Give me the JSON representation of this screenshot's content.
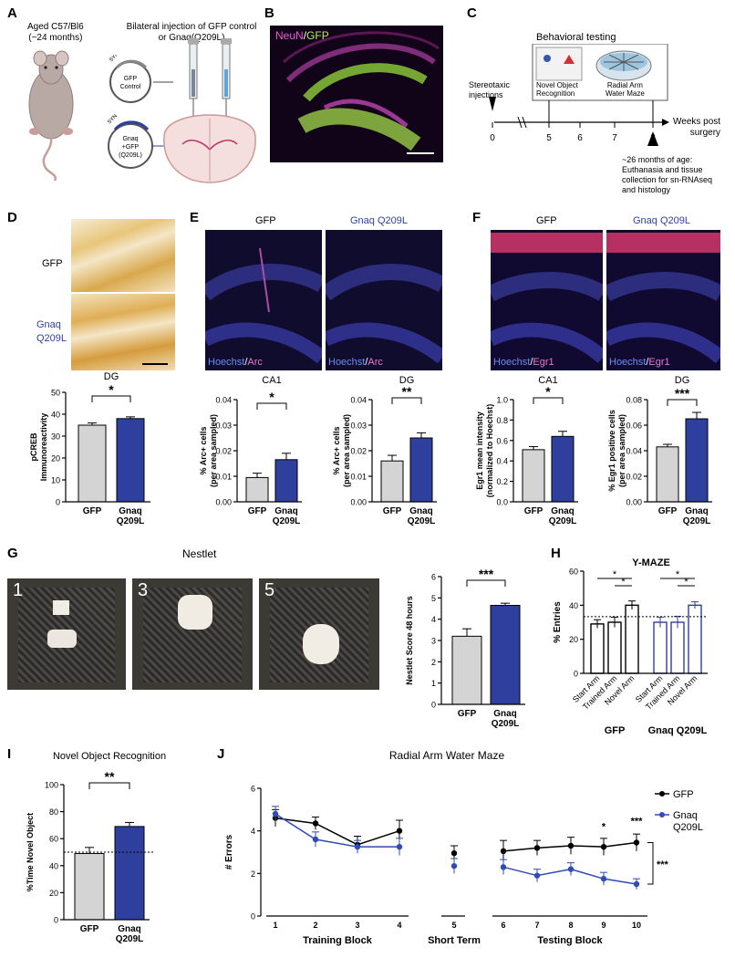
{
  "panelA": {
    "letter": "A",
    "mouse_label_1": "Aged C57/Bl6",
    "mouse_label_2": "(~24 months)",
    "injection_line_1": "Bilateral injection of GFP control",
    "injection_line_2": "or Gnaq(Q209L)",
    "vector1_syn": "SYN",
    "vector1_line1": "GFP",
    "vector1_line2": "Control",
    "vector2_syn": "SYN",
    "vector2_line1": "Gnaq",
    "vector2_line2": "+GFP",
    "vector2_line3": "(Q209L)"
  },
  "panelB": {
    "letter": "B",
    "label_neun": "NeuN",
    "label_sep": "/",
    "label_gfp": "GFP"
  },
  "panelC": {
    "letter": "C",
    "behavioral_testing": "Behavioral testing",
    "stereotaxic_1": "Stereotaxic",
    "stereotaxic_2": "injections",
    "nor_1": "Novel Object",
    "nor_2": "Recognition",
    "ram_1": "Radial Arm",
    "ram_2": "Water Maze",
    "ticks": [
      "0",
      "5",
      "6",
      "7",
      "8"
    ],
    "weeks_1": "Weeks post",
    "weeks_2": "surgery",
    "note_1": "~26 months of age:",
    "note_2": "Euthanasia and tissue",
    "note_3": "collection for sn-RNAseq",
    "note_4": "and histology"
  },
  "panelD": {
    "letter": "D",
    "gfp": "GFP",
    "gnaq_1": "Gnaq",
    "gnaq_2": "Q209L",
    "title": "DG",
    "sig": "*",
    "ylabel_1": "pCREB",
    "ylabel_2": "Immunoreactivity"
  },
  "panelE": {
    "letter": "E",
    "gfp": "GFP",
    "gnaq": "Gnaq Q209L",
    "stain_a": "Hoechst",
    "stain_b": "Arc",
    "ca1": "CA1",
    "dg": "DG",
    "ylabel_1": "% Arc+ cells",
    "ylabel_2": "(per area sampled)"
  },
  "panelF": {
    "letter": "F",
    "gfp": "GFP",
    "gnaq": "Gnaq Q209L",
    "stain_a": "Hoechst",
    "stain_b": "Egr1",
    "ca1": "CA1",
    "dg": "DG",
    "ylabel_ca1_1": "Egr1 mean intensity",
    "ylabel_ca1_2": "(normalized to Hoechst)",
    "ylabel_dg_1": "% Egr1 positive cells",
    "ylabel_dg_2": "(per area sampled)"
  },
  "panelG": {
    "letter": "G",
    "title": "Nestlet",
    "photo_labels": [
      "1",
      "3",
      "5"
    ],
    "ylabel": "Nestlet Score 48 hours"
  },
  "panelH": {
    "letter": "H",
    "title": "Y-MAZE",
    "ylabel": "% Entries"
  },
  "panelI": {
    "letter": "I",
    "title": "Novel Object Recognition",
    "ylabel": "%Time Novel Object"
  },
  "panelJ": {
    "letter": "J",
    "title": "Radial Arm Water Maze",
    "ylabel": "# Errors",
    "legend_gfp": "GFP",
    "legend_gnaq_1": "Gnaq",
    "legend_gnaq_2": "Q209L",
    "xgroup_training": "Training Block",
    "xgroup_short": "Short Term",
    "xgroup_testing": "Testing Block"
  },
  "colors": {
    "gfp_bar": "#d4d4d4",
    "gnaq_bar": "#2f3f9e",
    "gnaq_line": "#2f4bb5",
    "gfp_line": "#000000"
  },
  "chart_data": [
    {
      "id": "D",
      "type": "bar",
      "title": "DG",
      "xlabel": "",
      "ylabel": "pCREB Immunoreactivity",
      "categories": [
        "GFP",
        "Gnaq Q209L"
      ],
      "values": [
        35,
        38
      ],
      "sem": [
        1,
        0.8
      ],
      "ylim": [
        0,
        50
      ],
      "yticks": [
        0,
        10,
        20,
        30,
        40,
        50
      ],
      "significance": "*"
    },
    {
      "id": "E_CA1",
      "type": "bar",
      "title": "CA1",
      "xlabel": "",
      "ylabel": "% Arc+ cells (per area sampled)",
      "categories": [
        "GFP",
        "Gnaq Q209L"
      ],
      "values": [
        0.0095,
        0.0165
      ],
      "sem": [
        0.0017,
        0.0025
      ],
      "ylim": [
        0,
        0.04
      ],
      "yticks": [
        0.0,
        0.01,
        0.02,
        0.03,
        0.04
      ],
      "significance": "*"
    },
    {
      "id": "E_DG",
      "type": "bar",
      "title": "DG",
      "xlabel": "",
      "ylabel": "% Arc+ cells (per area sampled)",
      "categories": [
        "GFP",
        "Gnaq Q209L"
      ],
      "values": [
        0.016,
        0.025
      ],
      "sem": [
        0.0022,
        0.002
      ],
      "ylim": [
        0,
        0.04
      ],
      "yticks": [
        0.0,
        0.01,
        0.02,
        0.03,
        0.04
      ],
      "significance": "**"
    },
    {
      "id": "F_CA1",
      "type": "bar",
      "title": "CA1",
      "xlabel": "",
      "ylabel": "Egr1 mean intensity (normalized to Hoechst)",
      "categories": [
        "GFP",
        "Gnaq Q209L"
      ],
      "values": [
        0.51,
        0.64
      ],
      "sem": [
        0.03,
        0.05
      ],
      "ylim": [
        0,
        1.0
      ],
      "yticks": [
        0.0,
        0.2,
        0.4,
        0.6,
        0.8,
        1.0
      ],
      "significance": "*"
    },
    {
      "id": "F_DG",
      "type": "bar",
      "title": "DG",
      "xlabel": "",
      "ylabel": "% Egr1 positive cells (per area sampled)",
      "categories": [
        "GFP",
        "Gnaq Q209L"
      ],
      "values": [
        0.043,
        0.065
      ],
      "sem": [
        0.002,
        0.005
      ],
      "ylim": [
        0,
        0.08
      ],
      "yticks": [
        0.0,
        0.02,
        0.04,
        0.06,
        0.08
      ],
      "significance": "***"
    },
    {
      "id": "G",
      "type": "bar",
      "title": "",
      "xlabel": "",
      "ylabel": "Nestlet Score 48 hours",
      "categories": [
        "GFP",
        "Gnaq Q209L"
      ],
      "values": [
        3.2,
        4.65
      ],
      "sem": [
        0.35,
        0.1
      ],
      "ylim": [
        0,
        6
      ],
      "yticks": [
        0,
        1,
        2,
        3,
        4,
        5,
        6
      ],
      "significance": "***"
    },
    {
      "id": "H",
      "type": "bar",
      "title": "Y-MAZE",
      "xlabel": "",
      "ylabel": "% Entries",
      "categories": [
        "Start Arm",
        "Trained Arm",
        "Novel Arm",
        "Start Arm",
        "Trained Arm",
        "Novel Arm"
      ],
      "groups": [
        "GFP",
        "Gnaq Q209L"
      ],
      "values": [
        29,
        30,
        40,
        30,
        30,
        40
      ],
      "sem": [
        2.5,
        3,
        2.5,
        3,
        3.5,
        2
      ],
      "ylim": [
        0,
        60
      ],
      "yticks": [
        0,
        20,
        40,
        60
      ],
      "reference_line": 33.3,
      "significance": "*"
    },
    {
      "id": "I",
      "type": "bar",
      "title": "Novel Object Recognition",
      "xlabel": "",
      "ylabel": "%Time Novel Object",
      "categories": [
        "GFP",
        "Gnaq Q209L"
      ],
      "values": [
        49,
        69
      ],
      "sem": [
        4.5,
        3
      ],
      "ylim": [
        0,
        100
      ],
      "yticks": [
        0,
        20,
        40,
        60,
        80,
        100
      ],
      "reference_line": 50,
      "significance": "**"
    },
    {
      "id": "J",
      "type": "line",
      "title": "Radial Arm Water Maze",
      "ylabel": "# Errors",
      "ylim": [
        0,
        6
      ],
      "yticks": [
        0,
        2,
        4,
        6
      ],
      "x_groups": [
        {
          "label": "Training Block",
          "x": [
            1,
            2,
            3,
            4
          ]
        },
        {
          "label": "Short Term",
          "x": [
            5
          ]
        },
        {
          "label": "Testing Block",
          "x": [
            6,
            7,
            8,
            9,
            10
          ]
        }
      ],
      "series": [
        {
          "name": "GFP",
          "x": [
            1,
            2,
            3,
            4,
            5,
            6,
            7,
            8,
            9,
            10
          ],
          "values": [
            4.6,
            4.35,
            3.35,
            4.0,
            2.95,
            3.05,
            3.2,
            3.3,
            3.25,
            3.45
          ],
          "sem": [
            0.4,
            0.3,
            0.4,
            0.5,
            0.35,
            0.5,
            0.35,
            0.4,
            0.4,
            0.4
          ]
        },
        {
          "name": "Gnaq Q209L",
          "x": [
            1,
            2,
            3,
            4,
            5,
            6,
            7,
            8,
            9,
            10
          ],
          "values": [
            4.8,
            3.6,
            3.25,
            3.25,
            2.35,
            2.3,
            1.9,
            2.2,
            1.75,
            1.5
          ],
          "sem": [
            0.35,
            0.35,
            0.3,
            0.4,
            0.35,
            0.35,
            0.3,
            0.3,
            0.3,
            0.25
          ]
        }
      ],
      "annotations": [
        "*",
        "***",
        "***"
      ]
    }
  ]
}
